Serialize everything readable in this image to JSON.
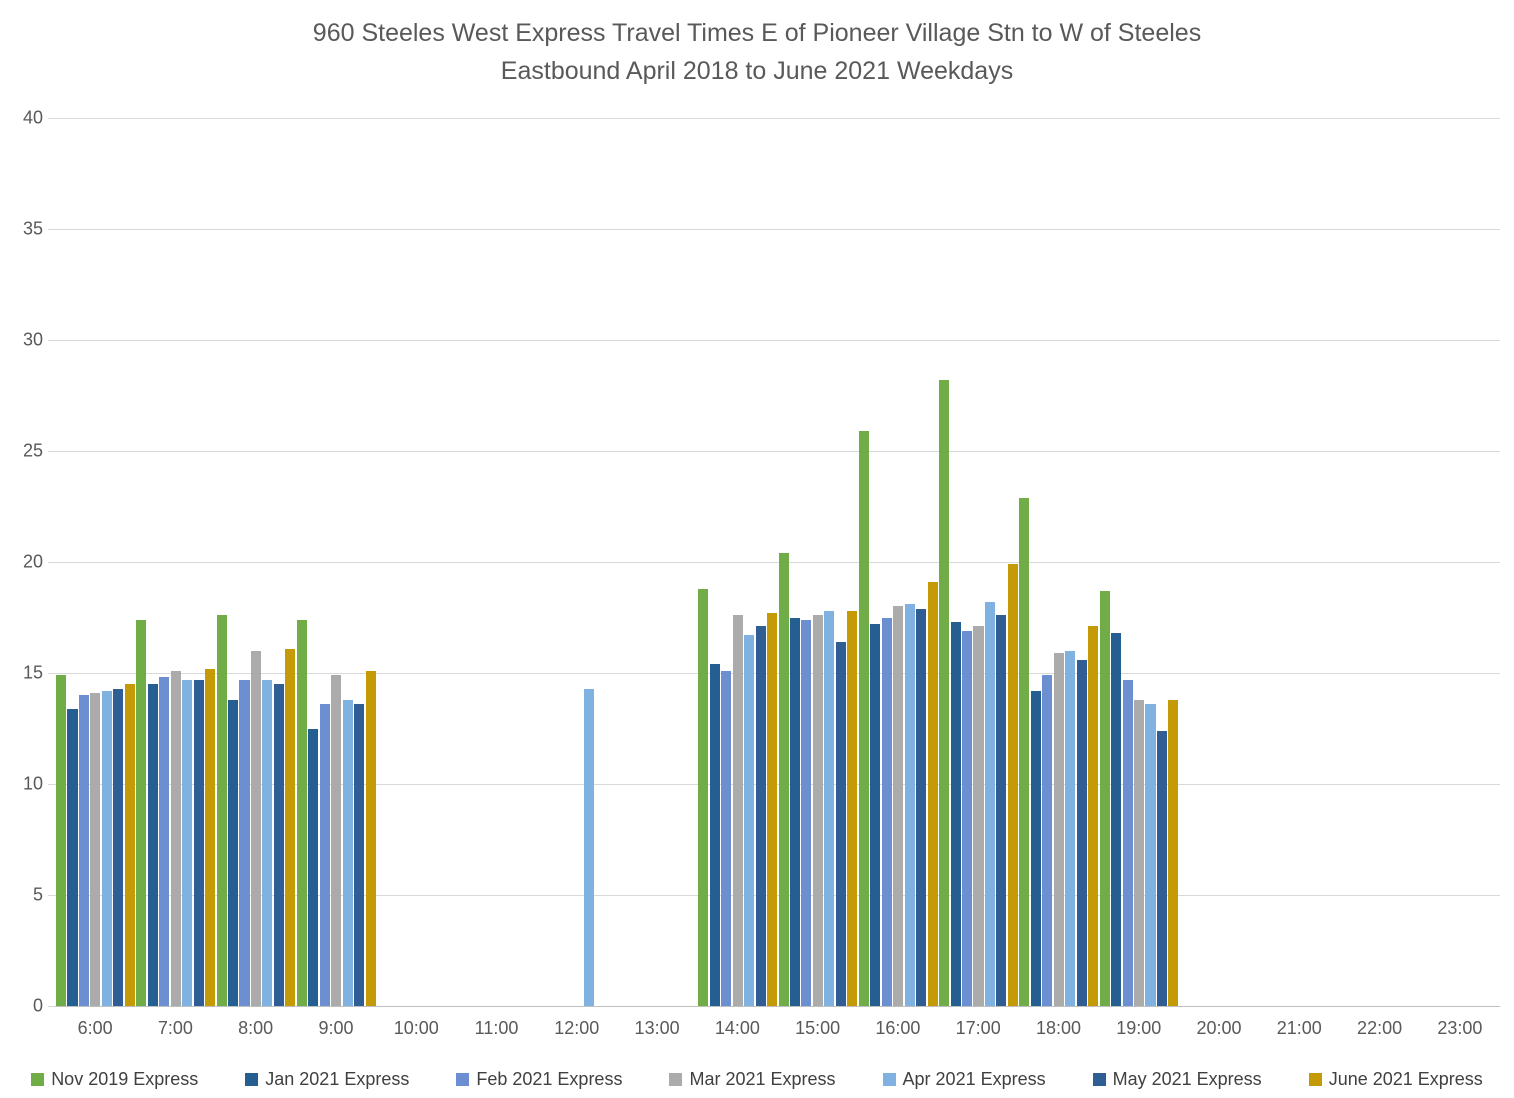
{
  "title": {
    "line1": "960 Steeles West Express Travel Times E of Pioneer Village Stn to W of Steeles",
    "line2": "Eastbound April 2018 to June 2021 Weekdays"
  },
  "chart_data": {
    "type": "bar",
    "title": "960 Steeles West Express Travel Times E of Pioneer Village Stn to W of Steeles Eastbound April 2018 to June 2021 Weekdays",
    "xlabel": "",
    "ylabel": "",
    "ylim": [
      0,
      40
    ],
    "ytick_interval": 5,
    "grid": true,
    "legend_position": "bottom",
    "categories": [
      "6:00",
      "7:00",
      "8:00",
      "9:00",
      "10:00",
      "11:00",
      "12:00",
      "13:00",
      "14:00",
      "15:00",
      "16:00",
      "17:00",
      "18:00",
      "19:00",
      "20:00",
      "21:00",
      "22:00",
      "23:00"
    ],
    "series": [
      {
        "name": "Nov 2019 Express",
        "color": "#70AD47",
        "values": [
          14.9,
          17.4,
          17.6,
          17.4,
          null,
          null,
          null,
          null,
          18.8,
          20.4,
          25.9,
          28.2,
          22.9,
          18.7,
          null,
          null,
          null,
          null
        ]
      },
      {
        "name": "Jan 2021 Express",
        "color": "#255E91",
        "values": [
          13.4,
          14.5,
          13.8,
          12.5,
          null,
          null,
          null,
          null,
          15.4,
          17.5,
          17.2,
          17.3,
          14.2,
          16.8,
          null,
          null,
          null,
          null
        ]
      },
      {
        "name": "Feb 2021 Express",
        "color": "#6B8FD0",
        "values": [
          14.0,
          14.8,
          14.7,
          13.6,
          null,
          null,
          null,
          null,
          15.1,
          17.4,
          17.5,
          16.9,
          14.9,
          14.7,
          null,
          null,
          null,
          null
        ]
      },
      {
        "name": "Mar 2021 Express",
        "color": "#ABABAB",
        "values": [
          14.1,
          15.1,
          16.0,
          14.9,
          null,
          null,
          null,
          null,
          17.6,
          17.6,
          18.0,
          17.1,
          15.9,
          13.8,
          null,
          null,
          null,
          null
        ]
      },
      {
        "name": "Apr 2021 Express",
        "color": "#7FB2E0",
        "values": [
          14.2,
          14.7,
          14.7,
          13.8,
          null,
          null,
          14.3,
          null,
          16.7,
          17.8,
          18.1,
          18.2,
          16.0,
          13.6,
          null,
          null,
          null,
          null
        ]
      },
      {
        "name": "May 2021 Express",
        "color": "#2F5D94",
        "values": [
          14.3,
          14.7,
          14.5,
          13.6,
          null,
          null,
          null,
          null,
          17.1,
          16.4,
          17.9,
          17.6,
          15.6,
          12.4,
          null,
          null,
          null,
          null
        ]
      },
      {
        "name": "June 2021 Express",
        "color": "#C49A06",
        "values": [
          14.5,
          15.2,
          16.1,
          15.1,
          null,
          null,
          null,
          null,
          17.7,
          17.8,
          19.1,
          19.9,
          17.1,
          13.8,
          null,
          null,
          null,
          null
        ]
      }
    ]
  }
}
